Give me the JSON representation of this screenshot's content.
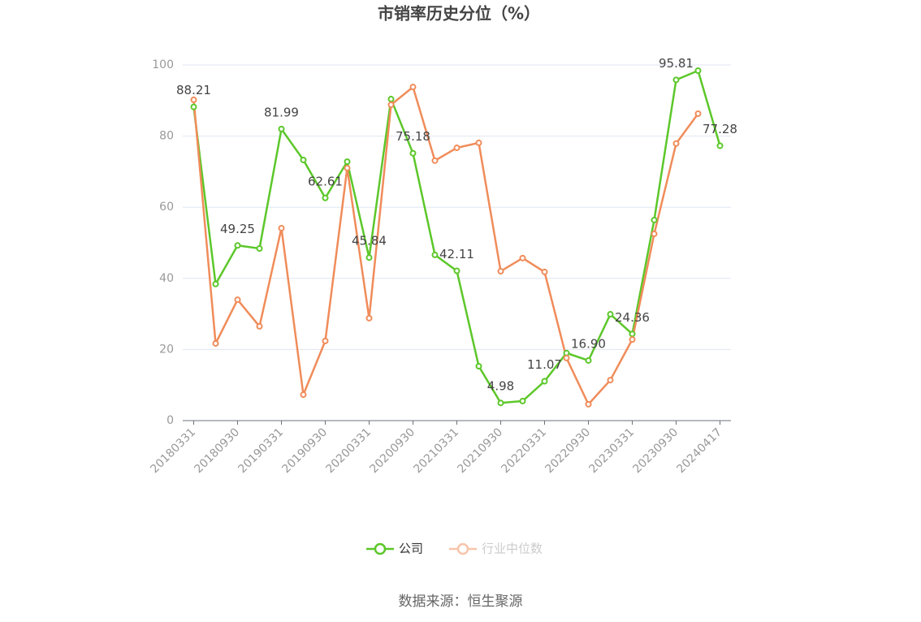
{
  "chart_data": {
    "type": "line",
    "title": "市销率历史分位（%）",
    "categories": [
      "20180331",
      null,
      "20180930",
      null,
      "20190331",
      null,
      "20190930",
      null,
      "20200331",
      null,
      "20200930",
      null,
      "20210331",
      null,
      "20210930",
      null,
      "20220331",
      null,
      "20220930",
      null,
      "20230331",
      null,
      "20230930",
      null,
      "20240417"
    ],
    "series": [
      {
        "name": "公司",
        "color": "#5cc72a",
        "values": [
          88.21,
          38.4,
          49.25,
          48.4,
          81.99,
          73.3,
          62.61,
          72.8,
          45.84,
          90.4,
          75.18,
          46.6,
          42.11,
          15.3,
          4.98,
          5.5,
          11.07,
          19.0,
          16.9,
          29.9,
          24.36,
          56.4,
          95.81,
          98.4,
          77.28
        ],
        "value_labels": [
          "88.21",
          null,
          "49.25",
          null,
          "81.99",
          null,
          "62.61",
          null,
          "45.84",
          null,
          "75.18",
          null,
          "42.11",
          null,
          "4.98",
          null,
          "11.07",
          null,
          "16.90",
          null,
          "24.36",
          null,
          "95.81",
          null,
          "77.28"
        ]
      },
      {
        "name": "行业中位数",
        "color": "#f08c5a",
        "values": [
          90.2,
          21.7,
          34.0,
          26.5,
          54.1,
          7.3,
          22.4,
          71.0,
          28.8,
          88.8,
          93.8,
          73.1,
          76.7,
          78.1,
          42.0,
          45.7,
          41.8,
          17.6,
          4.6,
          11.4,
          22.8,
          52.5,
          77.9,
          86.3,
          null
        ]
      }
    ],
    "ylim": [
      0,
      100
    ],
    "yticks": [
      0,
      20,
      40,
      60,
      80,
      100
    ],
    "grid": true,
    "legend": "bottom",
    "source": "数据来源：恒生聚源"
  }
}
